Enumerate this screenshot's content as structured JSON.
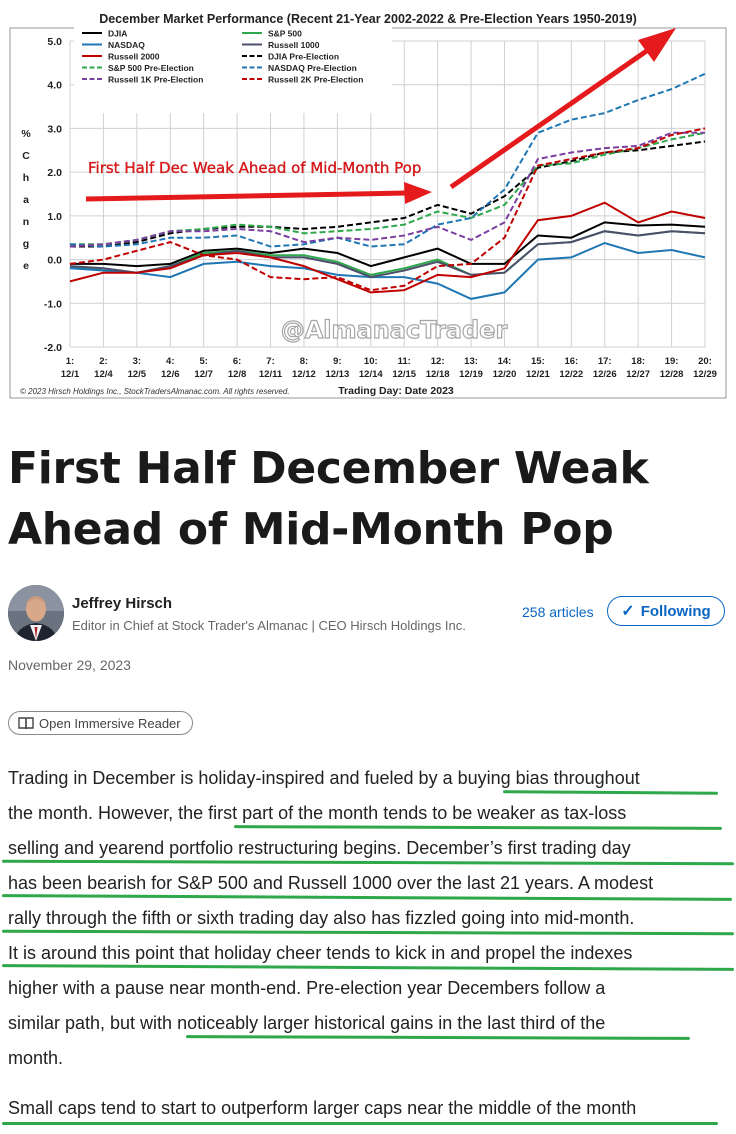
{
  "chart": {
    "title": "December Market Performance (Recent 21-Year 2002-2022 & Pre-Election Years 1950-2019)",
    "ylabel_chars": [
      "%",
      "C",
      "h",
      "a",
      "n",
      "g",
      "e"
    ],
    "yticks": [
      "5.0",
      "4.0",
      "3.0",
      "2.0",
      "1.0",
      "0.0",
      "-1.0",
      "-2.0"
    ],
    "xticks_top": [
      "1:",
      "2:",
      "3:",
      "4:",
      "5:",
      "6:",
      "7:",
      "8:",
      "9:",
      "10:",
      "11:",
      "12:",
      "13:",
      "14:",
      "15:",
      "16:",
      "17:",
      "18:",
      "19:",
      "20:"
    ],
    "xticks_bottom": [
      "12/1",
      "12/4",
      "12/5",
      "12/6",
      "12/7",
      "12/8",
      "12/11",
      "12/12",
      "12/13",
      "12/14",
      "12/15",
      "12/18",
      "12/19",
      "12/20",
      "12/21",
      "12/22",
      "12/26",
      "12/27",
      "12/28",
      "12/29"
    ],
    "xlabel": "Trading Day: Date 2023",
    "copyright": "© 2023 Hirsch Holdings Inc., StockTradersAlmanac.com. All rights reserved.",
    "watermark": "@AlmanacTrader",
    "annotation": "First Half Dec Weak Ahead of Mid-Month Pop",
    "legend_placement": "top-left",
    "colors": {
      "arrow": "#e41a1c",
      "annotation": "#e41a1c",
      "grid": "#d0d0d0"
    }
  },
  "chart_data": {
    "type": "line",
    "title": "December Market Performance (Recent 21-Year 2002-2022 & Pre-Election Years 1950-2019)",
    "xlabel": "Trading Day: Date 2023",
    "ylabel": "% Change",
    "ylim": [
      -2.0,
      5.0
    ],
    "x": [
      1,
      2,
      3,
      4,
      5,
      6,
      7,
      8,
      9,
      10,
      11,
      12,
      13,
      14,
      15,
      16,
      17,
      18,
      19,
      20
    ],
    "series": [
      {
        "name": "DJIA",
        "color": "#000000",
        "dash": "solid",
        "values": [
          -0.1,
          -0.1,
          -0.15,
          -0.1,
          0.2,
          0.25,
          0.15,
          0.25,
          0.15,
          -0.15,
          0.05,
          0.25,
          -0.1,
          -0.1,
          0.55,
          0.5,
          0.85,
          0.78,
          0.8,
          0.75
        ]
      },
      {
        "name": "S&P 500",
        "color": "#2ea84a",
        "dash": "solid",
        "values": [
          -0.15,
          -0.25,
          -0.3,
          -0.15,
          0.15,
          0.2,
          0.1,
          0.1,
          -0.05,
          -0.35,
          -0.2,
          0.0,
          -0.35,
          -0.3,
          0.35,
          0.4,
          0.65,
          0.55,
          0.65,
          0.6
        ]
      },
      {
        "name": "NASDAQ",
        "color": "#1f77b4",
        "dash": "solid",
        "values": [
          -0.2,
          -0.25,
          -0.3,
          -0.4,
          -0.1,
          -0.05,
          -0.15,
          -0.2,
          -0.35,
          -0.4,
          -0.4,
          -0.55,
          -0.9,
          -0.75,
          0.0,
          0.05,
          0.38,
          0.15,
          0.22,
          0.05
        ]
      },
      {
        "name": "Russell 1000",
        "color": "#4b4f6b",
        "dash": "solid",
        "values": [
          -0.15,
          -0.2,
          -0.3,
          -0.15,
          0.1,
          0.2,
          0.05,
          0.05,
          -0.1,
          -0.4,
          -0.25,
          -0.05,
          -0.35,
          -0.3,
          0.35,
          0.4,
          0.65,
          0.55,
          0.65,
          0.6
        ]
      },
      {
        "name": "Russell 2000",
        "color": "#c00000",
        "dash": "solid",
        "values": [
          -0.5,
          -0.3,
          -0.3,
          -0.2,
          0.1,
          0.15,
          0.05,
          -0.15,
          -0.45,
          -0.75,
          -0.7,
          -0.35,
          -0.4,
          -0.2,
          0.9,
          1.0,
          1.3,
          0.85,
          1.1,
          0.95
        ]
      },
      {
        "name": "DJIA Pre-Election",
        "color": "#000000",
        "dash": "dash",
        "values": [
          0.3,
          0.3,
          0.4,
          0.6,
          0.7,
          0.75,
          0.75,
          0.7,
          0.75,
          0.85,
          0.95,
          1.25,
          1.05,
          1.45,
          2.1,
          2.25,
          2.45,
          2.5,
          2.6,
          2.7
        ]
      },
      {
        "name": "S&P 500 Pre-Election",
        "color": "#2ea84a",
        "dash": "dash",
        "values": [
          0.35,
          0.35,
          0.45,
          0.65,
          0.7,
          0.8,
          0.75,
          0.6,
          0.65,
          0.7,
          0.8,
          1.1,
          0.95,
          1.25,
          2.15,
          2.2,
          2.4,
          2.55,
          2.75,
          2.9
        ]
      },
      {
        "name": "NASDAQ Pre-Election",
        "color": "#1f77b4",
        "dash": "dash",
        "values": [
          0.35,
          0.3,
          0.35,
          0.5,
          0.5,
          0.55,
          0.3,
          0.35,
          0.5,
          0.3,
          0.35,
          0.8,
          0.95,
          1.6,
          2.9,
          3.2,
          3.35,
          3.65,
          3.9,
          4.25
        ]
      },
      {
        "name": "Russell 1K Pre-Election",
        "color": "#7b3fa0",
        "dash": "dash",
        "values": [
          0.3,
          0.35,
          0.45,
          0.65,
          0.65,
          0.7,
          0.65,
          0.4,
          0.5,
          0.45,
          0.55,
          0.75,
          0.45,
          0.85,
          2.3,
          2.45,
          2.55,
          2.6,
          2.9,
          2.9
        ]
      },
      {
        "name": "Russell 2K Pre-Election",
        "color": "#c00000",
        "dash": "dash",
        "values": [
          -0.1,
          0.0,
          0.2,
          0.4,
          0.1,
          0.0,
          -0.4,
          -0.45,
          -0.4,
          -0.7,
          -0.6,
          -0.15,
          -0.1,
          0.5,
          2.15,
          2.3,
          2.45,
          2.55,
          2.85,
          3.0
        ]
      }
    ]
  },
  "article": {
    "title": "First Half December Weak Ahead of Mid-Month Pop",
    "author_name": "Jeffrey Hirsch",
    "author_role": "Editor in Chief at Stock Trader's Almanac | CEO Hirsch Holdings Inc.",
    "articles_count": "258 articles",
    "follow_label": "Following",
    "date": "November 29, 2023",
    "reader_label": "Open Immersive Reader",
    "para1_lines": [
      "Trading in December is holiday-inspired and fueled by a buying bias throughout",
      "the month. However, the first part of the month tends to be weaker as tax-loss",
      "selling and yearend portfolio restructuring begins. December’s first trading day",
      "has been bearish for S&P 500 and Russell 1000 over the last 21 years. A modest",
      "rally through the fifth or sixth trading day also has fizzled going into mid-month.",
      "It is around this point that holiday cheer tends to kick in and propel the indexes",
      "higher with a pause near month-end. Pre-election year Decembers follow a",
      "similar path, but with noticeably larger historical gains in the last third of the",
      "month."
    ],
    "para2_line": "Small caps tend to start to outperform larger caps near the middle of the month",
    "highlight_color": "#2ea84a"
  }
}
